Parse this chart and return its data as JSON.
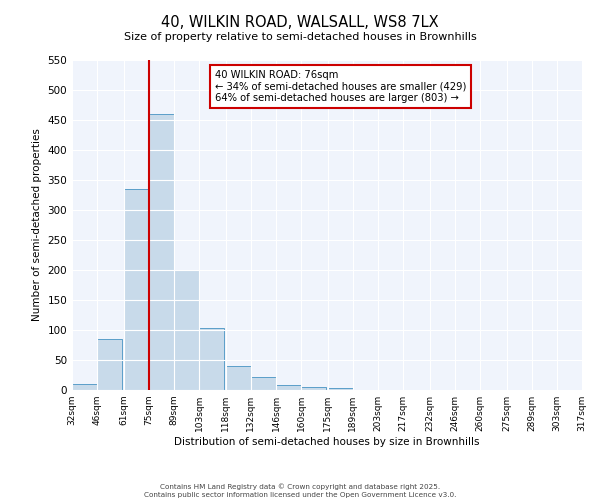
{
  "title": "40, WILKIN ROAD, WALSALL, WS8 7LX",
  "subtitle": "Size of property relative to semi-detached houses in Brownhills",
  "xlabel": "Distribution of semi-detached houses by size in Brownhills",
  "ylabel": "Number of semi-detached properties",
  "bin_labels": [
    "32sqm",
    "46sqm",
    "61sqm",
    "75sqm",
    "89sqm",
    "103sqm",
    "118sqm",
    "132sqm",
    "146sqm",
    "160sqm",
    "175sqm",
    "189sqm",
    "203sqm",
    "217sqm",
    "232sqm",
    "246sqm",
    "260sqm",
    "275sqm",
    "289sqm",
    "303sqm",
    "317sqm"
  ],
  "bin_edges": [
    32,
    46,
    61,
    75,
    89,
    103,
    118,
    132,
    146,
    160,
    175,
    189,
    203,
    217,
    232,
    246,
    260,
    275,
    289,
    303,
    317
  ],
  "bar_values": [
    10,
    85,
    335,
    460,
    200,
    103,
    40,
    22,
    8,
    5,
    3,
    0,
    0,
    0,
    0,
    0,
    0,
    0,
    0,
    0
  ],
  "ylim": [
    0,
    550
  ],
  "yticks": [
    0,
    50,
    100,
    150,
    200,
    250,
    300,
    350,
    400,
    450,
    500,
    550
  ],
  "property_line_x": 75,
  "bar_color": "#c8daea",
  "bar_edge_color": "#5a9ec9",
  "vline_color": "#cc0000",
  "annotation_text": "40 WILKIN ROAD: 76sqm\n← 34% of semi-detached houses are smaller (429)\n64% of semi-detached houses are larger (803) →",
  "annotation_box_color": "#ffffff",
  "annotation_box_edge": "#cc0000",
  "background_color": "#ffffff",
  "plot_bg_color": "#f0f4fc",
  "grid_color": "#ffffff",
  "footer_line1": "Contains HM Land Registry data © Crown copyright and database right 2025.",
  "footer_line2": "Contains public sector information licensed under the Open Government Licence v3.0."
}
